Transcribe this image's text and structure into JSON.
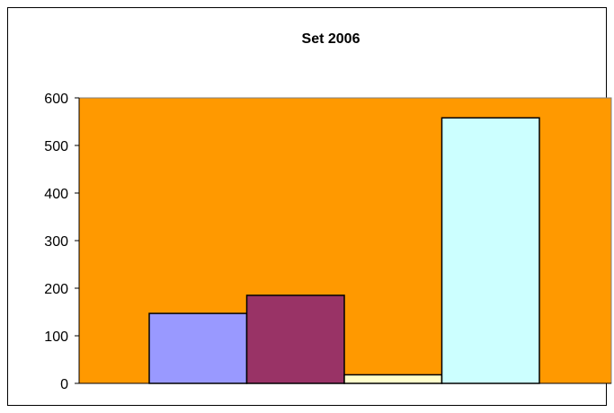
{
  "chart_data": {
    "type": "bar",
    "title": "Set 2006",
    "xlabel": "",
    "ylabel": "",
    "ylim": [
      0,
      600
    ],
    "yticks": [
      0,
      100,
      200,
      300,
      400,
      500,
      600
    ],
    "grid": false,
    "legend": "none",
    "plot_background": "#FF9900",
    "series": [
      {
        "values": [
          147
        ],
        "color": "#9999FF"
      },
      {
        "values": [
          185
        ],
        "color": "#993366"
      },
      {
        "values": [
          18
        ],
        "color": "#FFFFCC"
      },
      {
        "values": [
          558
        ],
        "color": "#CCFFFF"
      }
    ]
  }
}
